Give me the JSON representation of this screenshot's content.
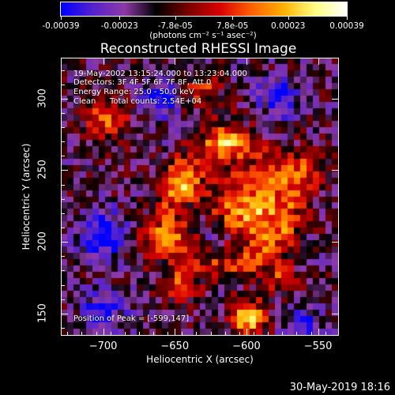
{
  "colorbar": {
    "tick_labels": [
      "-0.00039",
      "-0.00023",
      "-7.8e-05",
      "7.8e-05",
      "0.00023",
      "0.00039"
    ],
    "tick_values": [
      -0.00039,
      -0.00023,
      -7.8e-05,
      7.8e-05,
      0.00023,
      0.00039
    ],
    "units": "(photons cm⁻² s⁻¹ asec⁻²)",
    "range": [
      -0.00039,
      0.00039
    ]
  },
  "annotations": {
    "time_range": "19-May-2002 13:15:24.000 to 13:23:04.000",
    "detectors": "Detectors: 3F 4F 5F 6F 7F 8F, Att 0",
    "energy": "Energy Range: 25.0 - 50.0 keV",
    "clean": "Clean",
    "total_counts": "Total counts: 2.54E+04",
    "peak": "Position of Peak = [-599,147]"
  },
  "footer": "30-May-2019 18:16",
  "chart_data": {
    "type": "heatmap",
    "title": "Reconstructed RHESSI Image",
    "xlabel": "Heliocentric X (arcsec)",
    "ylabel": "Heliocentric Y (arcsec)",
    "xlim": [
      -729,
      -536
    ],
    "ylim": [
      135,
      328
    ],
    "x_ticks": [
      -700,
      -650,
      -600,
      -550
    ],
    "x_tick_labels": [
      "−700",
      "−650",
      "−600",
      "−550"
    ],
    "y_ticks": [
      150,
      200,
      250,
      300
    ],
    "y_tick_labels": [
      "150",
      "200",
      "250",
      "300"
    ],
    "colormap": [
      "#0000ff",
      "#5522cc",
      "#8e3aa6",
      "#000000",
      "#7a0000",
      "#d80000",
      "#ff6000",
      "#ffb000",
      "#ffff80",
      "#ffffff"
    ],
    "grid_cols": 44,
    "grid_rows": 44,
    "bright_features": [
      {
        "x": -597,
        "y": 222,
        "w": 25,
        "level": 0.85
      },
      {
        "x": -614,
        "y": 270,
        "w": 14,
        "level": 0.55
      },
      {
        "x": -599,
        "y": 147,
        "w": 12,
        "level": 1.0
      },
      {
        "x": -642,
        "y": 240,
        "w": 13,
        "level": 0.65
      },
      {
        "x": -660,
        "y": 200,
        "w": 14,
        "level": 0.6
      },
      {
        "x": -697,
        "y": 285,
        "w": 15,
        "level": 0.6
      },
      {
        "x": -560,
        "y": 250,
        "w": 14,
        "level": 0.55
      },
      {
        "x": -645,
        "y": 170,
        "w": 13,
        "level": 0.5
      },
      {
        "x": -575,
        "y": 175,
        "w": 11,
        "level": 0.45
      },
      {
        "x": -630,
        "y": 305,
        "w": 13,
        "level": 0.45
      }
    ],
    "dim_features": [
      {
        "x": -700,
        "y": 205,
        "w": 15,
        "level": -0.7
      },
      {
        "x": -660,
        "y": 300,
        "w": 12,
        "level": -0.6
      },
      {
        "x": -577,
        "y": 300,
        "w": 13,
        "level": -0.55
      },
      {
        "x": -560,
        "y": 140,
        "w": 12,
        "level": -0.55
      },
      {
        "x": -700,
        "y": 150,
        "w": 15,
        "level": -0.5
      },
      {
        "x": -620,
        "y": 205,
        "w": 10,
        "level": -0.35
      }
    ]
  }
}
